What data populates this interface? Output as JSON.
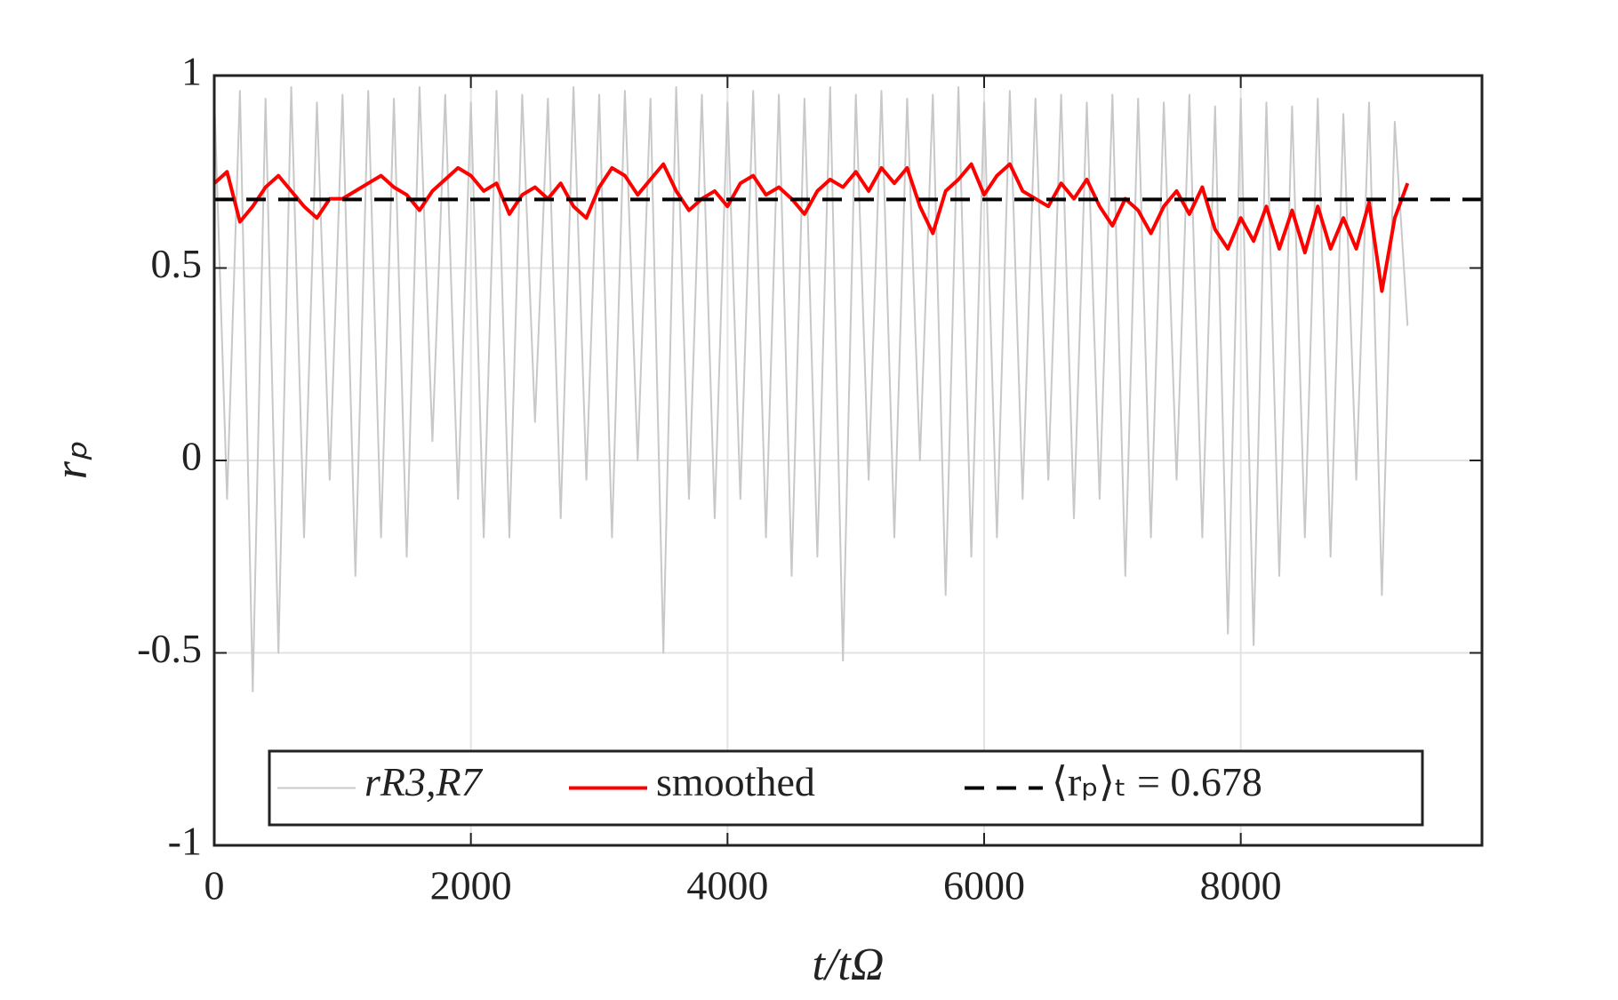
{
  "chart_data": {
    "type": "line",
    "xlabel": "t/tΩ",
    "ylabel": "rₚ",
    "xlim": [
      0,
      9880
    ],
    "ylim": [
      -1,
      1
    ],
    "xticks": [
      0,
      2000,
      4000,
      6000,
      8000
    ],
    "yticks": [
      -1,
      -0.5,
      0,
      0.5,
      1
    ],
    "grid": true,
    "legend": "lower center",
    "x": [
      0,
      100,
      200,
      300,
      400,
      500,
      600,
      700,
      800,
      900,
      1000,
      1100,
      1200,
      1300,
      1400,
      1500,
      1600,
      1700,
      1800,
      1900,
      2000,
      2100,
      2200,
      2300,
      2400,
      2500,
      2600,
      2700,
      2800,
      2900,
      3000,
      3100,
      3200,
      3300,
      3400,
      3500,
      3600,
      3700,
      3800,
      3900,
      4000,
      4100,
      4200,
      4300,
      4400,
      4500,
      4600,
      4700,
      4800,
      4900,
      5000,
      5100,
      5200,
      5300,
      5400,
      5500,
      5600,
      5700,
      5800,
      5900,
      6000,
      6100,
      6200,
      6300,
      6400,
      6500,
      6600,
      6700,
      6800,
      6900,
      7000,
      7100,
      7200,
      7300,
      7400,
      7500,
      7600,
      7700,
      7800,
      7900,
      8000,
      8100,
      8200,
      8300,
      8400,
      8500,
      8600,
      8700,
      8800,
      8900,
      9000,
      9100,
      9200,
      9300
    ],
    "series": [
      {
        "name": "rR3,R7",
        "color": "#c8c8c8",
        "values": [
          0.95,
          -0.1,
          0.96,
          -0.6,
          0.94,
          -0.5,
          0.97,
          -0.2,
          0.93,
          -0.05,
          0.95,
          -0.3,
          0.96,
          -0.2,
          0.94,
          -0.25,
          0.97,
          0.05,
          0.95,
          -0.1,
          0.93,
          -0.2,
          0.96,
          -0.2,
          0.95,
          0.1,
          0.94,
          -0.15,
          0.97,
          -0.05,
          0.95,
          -0.2,
          0.96,
          0.0,
          0.94,
          -0.5,
          0.97,
          -0.1,
          0.95,
          -0.15,
          0.93,
          -0.1,
          0.96,
          -0.2,
          0.95,
          -0.3,
          0.94,
          -0.25,
          0.97,
          -0.52,
          0.95,
          -0.05,
          0.96,
          -0.2,
          0.94,
          0.0,
          0.95,
          -0.35,
          0.97,
          -0.25,
          0.93,
          -0.2,
          0.96,
          -0.1,
          0.94,
          -0.05,
          0.95,
          -0.15,
          0.93,
          -0.1,
          0.95,
          -0.3,
          0.94,
          -0.2,
          0.93,
          -0.05,
          0.95,
          -0.2,
          0.92,
          -0.45,
          0.94,
          -0.48,
          0.93,
          -0.3,
          0.92,
          -0.2,
          0.94,
          -0.25,
          0.9,
          -0.05,
          0.93,
          -0.35,
          0.88,
          0.35
        ]
      },
      {
        "name": "smoothed",
        "color": "#ff0000",
        "values": [
          0.72,
          0.75,
          0.62,
          0.66,
          0.71,
          0.74,
          0.7,
          0.66,
          0.63,
          0.68,
          0.68,
          0.7,
          0.72,
          0.74,
          0.71,
          0.69,
          0.65,
          0.7,
          0.73,
          0.76,
          0.74,
          0.7,
          0.72,
          0.64,
          0.69,
          0.71,
          0.68,
          0.72,
          0.66,
          0.63,
          0.71,
          0.76,
          0.74,
          0.69,
          0.73,
          0.77,
          0.7,
          0.65,
          0.68,
          0.7,
          0.66,
          0.72,
          0.74,
          0.69,
          0.71,
          0.68,
          0.64,
          0.7,
          0.73,
          0.71,
          0.75,
          0.7,
          0.76,
          0.72,
          0.76,
          0.66,
          0.59,
          0.7,
          0.73,
          0.77,
          0.69,
          0.74,
          0.77,
          0.7,
          0.68,
          0.66,
          0.72,
          0.68,
          0.73,
          0.66,
          0.61,
          0.68,
          0.65,
          0.59,
          0.66,
          0.7,
          0.64,
          0.71,
          0.6,
          0.55,
          0.63,
          0.57,
          0.66,
          0.55,
          0.65,
          0.54,
          0.66,
          0.55,
          0.63,
          0.55,
          0.67,
          0.44,
          0.63,
          0.72
        ]
      }
    ],
    "mean": {
      "name": "⟨rₚ⟩ₜ = 0.678",
      "value": 0.678,
      "color": "#000000"
    }
  }
}
